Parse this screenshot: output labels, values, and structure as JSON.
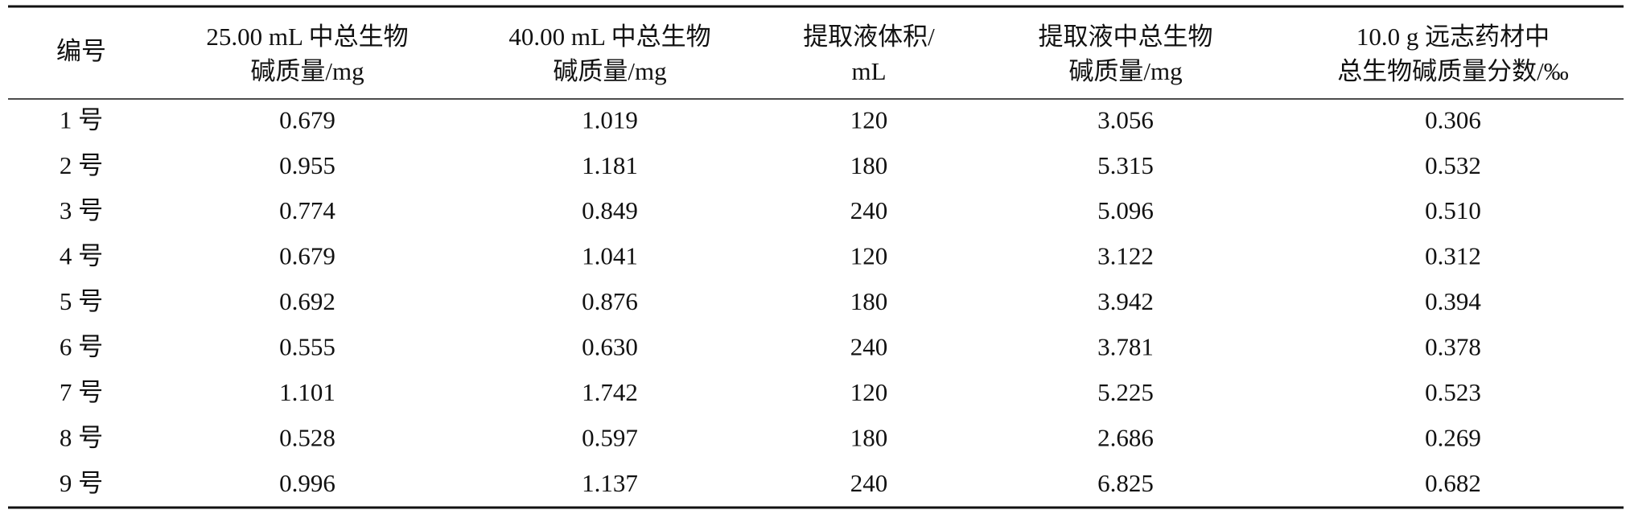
{
  "table": {
    "header": [
      [
        "编号"
      ],
      [
        "25.00 mL 中总生物",
        "碱质量/mg"
      ],
      [
        "40.00 mL 中总生物",
        "碱质量/mg"
      ],
      [
        "提取液体积/",
        "mL"
      ],
      [
        "提取液中总生物",
        "碱质量/mg"
      ],
      [
        "10.0 g 远志药材中",
        "总生物碱质量分数/‰"
      ]
    ],
    "rows": [
      [
        "1 号",
        "0.679",
        "1.019",
        "120",
        "3.056",
        "0.306"
      ],
      [
        "2 号",
        "0.955",
        "1.181",
        "180",
        "5.315",
        "0.532"
      ],
      [
        "3 号",
        "0.774",
        "0.849",
        "240",
        "5.096",
        "0.510"
      ],
      [
        "4 号",
        "0.679",
        "1.041",
        "120",
        "3.122",
        "0.312"
      ],
      [
        "5 号",
        "0.692",
        "0.876",
        "180",
        "3.942",
        "0.394"
      ],
      [
        "6 号",
        "0.555",
        "0.630",
        "240",
        "3.781",
        "0.378"
      ],
      [
        "7 号",
        "1.101",
        "1.742",
        "120",
        "5.225",
        "0.523"
      ],
      [
        "8 号",
        "0.528",
        "0.597",
        "180",
        "2.686",
        "0.269"
      ],
      [
        "9 号",
        "0.996",
        "1.137",
        "240",
        "6.825",
        "0.682"
      ]
    ]
  }
}
